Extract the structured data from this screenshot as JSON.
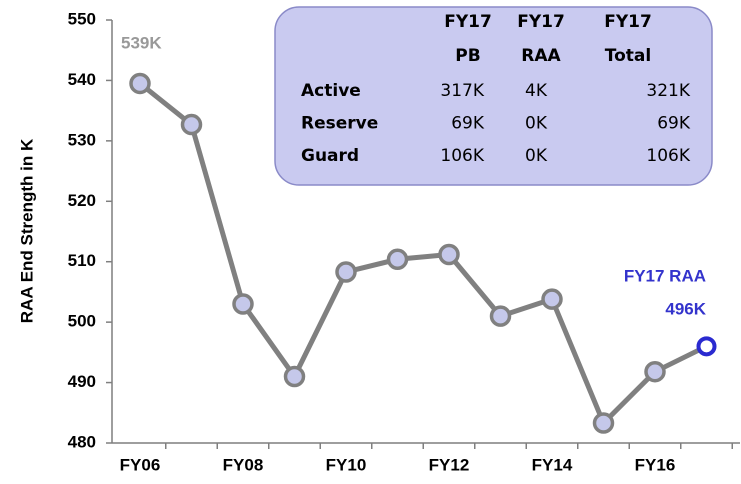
{
  "chart_data": {
    "type": "line",
    "y_label": "RAA End Strength in K",
    "categories": [
      "FY06",
      null,
      "FY08",
      null,
      "FY10",
      null,
      "FY12",
      null,
      "FY14",
      null,
      "FY16",
      null
    ],
    "values": [
      539.5,
      532.7,
      503,
      491,
      508.3,
      510.4,
      511.2,
      501,
      503.8,
      483.3,
      491.8,
      496
    ],
    "color": "#808080",
    "marker_color": "#c5c8ea",
    "highlight_color": "#2a2ad0",
    "ylim": [
      480,
      550
    ],
    "yticks": [
      480,
      490,
      500,
      510,
      520,
      530,
      540,
      550
    ],
    "grid": false,
    "annotations": [
      {
        "text": "539K",
        "color": "#999999"
      },
      {
        "text": "FY17 RAA",
        "color": "#3333cc"
      },
      {
        "text": "496K",
        "color": "#3333cc"
      }
    ],
    "table": {
      "header": [
        [
          "FY17",
          "PB"
        ],
        [
          "FY17",
          "RAA"
        ],
        [
          "FY17",
          "Total"
        ]
      ],
      "rows": [
        [
          "Active",
          "317K",
          "4K",
          "321K"
        ],
        [
          "Reserve",
          "69K",
          "0K",
          "69K"
        ],
        [
          "Guard",
          "106K",
          "0K",
          "106K"
        ]
      ]
    }
  }
}
